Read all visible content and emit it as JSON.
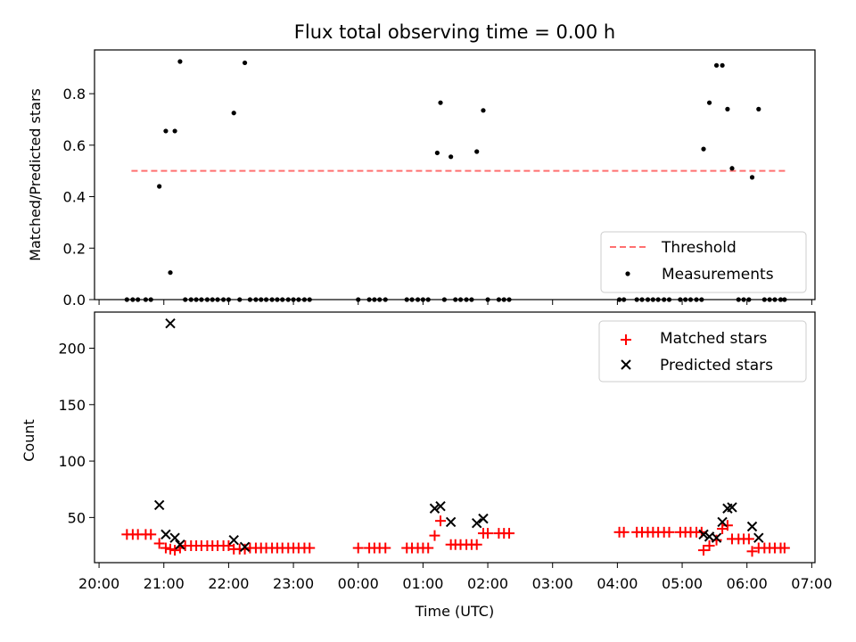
{
  "chart_data": [
    {
      "type": "scatter",
      "title": "Flux total observing time = 0.00 h",
      "ylabel": "Matched/Predicted stars",
      "xlabel": "",
      "ylim": [
        0,
        0.97
      ],
      "yticks": [
        0.0,
        0.2,
        0.4,
        0.6,
        0.8
      ],
      "ytick_labels": [
        "0.0",
        "0.2",
        "0.4",
        "0.6",
        "0.8"
      ],
      "legend_location": "lower-right",
      "threshold": {
        "name": "Threshold",
        "value": 0.5,
        "x_range": [
          20.5,
          30.6
        ],
        "color": "#ff7070"
      },
      "series": [
        {
          "name": "Measurements",
          "color": "#000000",
          "marker": "dot",
          "points": [
            [
              20.93,
              0.44
            ],
            [
              21.03,
              0.655
            ],
            [
              21.1,
              0.105
            ],
            [
              21.17,
              0.655
            ],
            [
              21.25,
              0.925
            ],
            [
              22.08,
              0.725
            ],
            [
              22.25,
              0.92
            ],
            [
              25.22,
              0.57
            ],
            [
              25.27,
              0.765
            ],
            [
              25.43,
              0.555
            ],
            [
              25.83,
              0.575
            ],
            [
              25.93,
              0.735
            ],
            [
              29.33,
              0.585
            ],
            [
              29.42,
              0.765
            ],
            [
              29.53,
              0.91
            ],
            [
              29.62,
              0.91
            ],
            [
              29.7,
              0.74
            ],
            [
              29.77,
              0.51
            ],
            [
              30.08,
              0.475
            ],
            [
              30.18,
              0.74
            ],
            [
              20.43,
              0
            ],
            [
              20.52,
              0
            ],
            [
              20.6,
              0
            ],
            [
              20.72,
              0
            ],
            [
              20.8,
              0
            ],
            [
              21.33,
              0
            ],
            [
              21.42,
              0
            ],
            [
              21.5,
              0
            ],
            [
              21.58,
              0
            ],
            [
              21.67,
              0
            ],
            [
              21.75,
              0
            ],
            [
              21.83,
              0
            ],
            [
              21.92,
              0
            ],
            [
              22.0,
              0
            ],
            [
              22.17,
              0
            ],
            [
              22.33,
              0
            ],
            [
              22.42,
              0
            ],
            [
              22.5,
              0
            ],
            [
              22.58,
              0
            ],
            [
              22.67,
              0
            ],
            [
              22.75,
              0
            ],
            [
              22.83,
              0
            ],
            [
              22.92,
              0
            ],
            [
              23.0,
              0
            ],
            [
              23.08,
              0
            ],
            [
              23.17,
              0
            ],
            [
              23.25,
              0
            ],
            [
              24.0,
              0
            ],
            [
              24.17,
              0
            ],
            [
              24.25,
              0
            ],
            [
              24.33,
              0
            ],
            [
              24.42,
              0
            ],
            [
              24.75,
              0
            ],
            [
              24.83,
              0
            ],
            [
              24.92,
              0
            ],
            [
              25.0,
              0
            ],
            [
              25.08,
              0
            ],
            [
              25.33,
              0
            ],
            [
              25.5,
              0
            ],
            [
              25.58,
              0
            ],
            [
              25.67,
              0
            ],
            [
              25.75,
              0
            ],
            [
              26.0,
              0
            ],
            [
              26.17,
              0
            ],
            [
              26.25,
              0
            ],
            [
              26.33,
              0
            ],
            [
              28.03,
              0
            ],
            [
              28.1,
              0
            ],
            [
              28.3,
              0
            ],
            [
              28.38,
              0
            ],
            [
              28.47,
              0
            ],
            [
              28.55,
              0
            ],
            [
              28.63,
              0
            ],
            [
              28.72,
              0
            ],
            [
              28.8,
              0
            ],
            [
              28.97,
              0
            ],
            [
              29.05,
              0
            ],
            [
              29.13,
              0
            ],
            [
              29.22,
              0
            ],
            [
              29.3,
              0
            ],
            [
              29.87,
              0
            ],
            [
              29.95,
              0
            ],
            [
              30.03,
              0
            ],
            [
              30.27,
              0
            ],
            [
              30.35,
              0
            ],
            [
              30.43,
              0
            ],
            [
              30.52,
              0
            ],
            [
              30.58,
              0
            ]
          ]
        }
      ]
    },
    {
      "type": "scatter",
      "title": "",
      "ylabel": "Count",
      "xlabel": "Time (UTC)",
      "ylim": [
        10,
        232
      ],
      "xlim": [
        19.93,
        31.05
      ],
      "yticks": [
        50,
        100,
        150,
        200
      ],
      "ytick_labels": [
        "50",
        "100",
        "150",
        "200"
      ],
      "xticks": [
        20,
        21,
        22,
        23,
        24,
        25,
        26,
        27,
        28,
        29,
        30,
        31
      ],
      "xtick_labels": [
        "20:00",
        "21:00",
        "22:00",
        "23:00",
        "00:00",
        "01:00",
        "02:00",
        "03:00",
        "04:00",
        "05:00",
        "06:00",
        "07:00"
      ],
      "legend_location": "upper-right",
      "series": [
        {
          "name": "Matched stars",
          "color": "#ff0000",
          "marker": "plus",
          "points": [
            [
              20.43,
              35
            ],
            [
              20.52,
              35
            ],
            [
              20.6,
              35
            ],
            [
              20.72,
              35
            ],
            [
              20.8,
              35
            ],
            [
              20.93,
              27
            ],
            [
              21.03,
              23
            ],
            [
              21.1,
              22
            ],
            [
              21.17,
              21
            ],
            [
              21.25,
              23
            ],
            [
              21.33,
              25
            ],
            [
              21.42,
              25
            ],
            [
              21.5,
              25
            ],
            [
              21.58,
              25
            ],
            [
              21.67,
              25
            ],
            [
              21.75,
              25
            ],
            [
              21.83,
              25
            ],
            [
              21.92,
              25
            ],
            [
              22.0,
              25
            ],
            [
              22.08,
              22
            ],
            [
              22.17,
              22
            ],
            [
              22.25,
              22
            ],
            [
              22.33,
              23
            ],
            [
              22.42,
              23
            ],
            [
              22.5,
              23
            ],
            [
              22.58,
              23
            ],
            [
              22.67,
              23
            ],
            [
              22.75,
              23
            ],
            [
              22.83,
              23
            ],
            [
              22.92,
              23
            ],
            [
              23.0,
              23
            ],
            [
              23.08,
              23
            ],
            [
              23.17,
              23
            ],
            [
              23.25,
              23
            ],
            [
              24.0,
              23
            ],
            [
              24.17,
              23
            ],
            [
              24.25,
              23
            ],
            [
              24.33,
              23
            ],
            [
              24.42,
              23
            ],
            [
              24.75,
              23
            ],
            [
              24.83,
              23
            ],
            [
              24.92,
              23
            ],
            [
              25.0,
              23
            ],
            [
              25.08,
              23
            ],
            [
              25.18,
              34
            ],
            [
              25.27,
              47
            ],
            [
              25.43,
              26
            ],
            [
              25.5,
              26
            ],
            [
              25.58,
              26
            ],
            [
              25.67,
              26
            ],
            [
              25.75,
              26
            ],
            [
              25.83,
              26
            ],
            [
              25.93,
              36
            ],
            [
              26.0,
              36
            ],
            [
              26.17,
              36
            ],
            [
              26.25,
              36
            ],
            [
              26.33,
              36
            ],
            [
              28.03,
              37
            ],
            [
              28.1,
              37
            ],
            [
              28.3,
              37
            ],
            [
              28.38,
              37
            ],
            [
              28.47,
              37
            ],
            [
              28.55,
              37
            ],
            [
              28.63,
              37
            ],
            [
              28.72,
              37
            ],
            [
              28.8,
              37
            ],
            [
              28.97,
              37
            ],
            [
              29.05,
              37
            ],
            [
              29.13,
              37
            ],
            [
              29.22,
              37
            ],
            [
              29.3,
              37
            ],
            [
              29.33,
              21
            ],
            [
              29.42,
              25
            ],
            [
              29.53,
              30
            ],
            [
              29.62,
              40
            ],
            [
              29.7,
              43
            ],
            [
              29.77,
              31
            ],
            [
              29.87,
              31
            ],
            [
              29.95,
              31
            ],
            [
              30.03,
              31
            ],
            [
              30.08,
              20
            ],
            [
              30.18,
              23
            ],
            [
              30.27,
              23
            ],
            [
              30.35,
              23
            ],
            [
              30.43,
              23
            ],
            [
              30.52,
              23
            ],
            [
              30.58,
              23
            ]
          ]
        },
        {
          "name": "Predicted stars",
          "color": "#000000",
          "marker": "x",
          "points": [
            [
              20.93,
              61
            ],
            [
              21.03,
              35
            ],
            [
              21.1,
              222
            ],
            [
              21.17,
              32
            ],
            [
              21.25,
              26
            ],
            [
              22.08,
              30
            ],
            [
              22.25,
              24
            ],
            [
              25.18,
              58
            ],
            [
              25.27,
              60
            ],
            [
              25.43,
              46
            ],
            [
              25.83,
              45
            ],
            [
              25.93,
              49
            ],
            [
              29.33,
              35
            ],
            [
              29.42,
              33
            ],
            [
              29.53,
              32
            ],
            [
              29.62,
              46
            ],
            [
              29.7,
              58
            ],
            [
              29.77,
              59
            ],
            [
              30.08,
              42
            ],
            [
              30.18,
              32
            ]
          ]
        }
      ]
    }
  ]
}
